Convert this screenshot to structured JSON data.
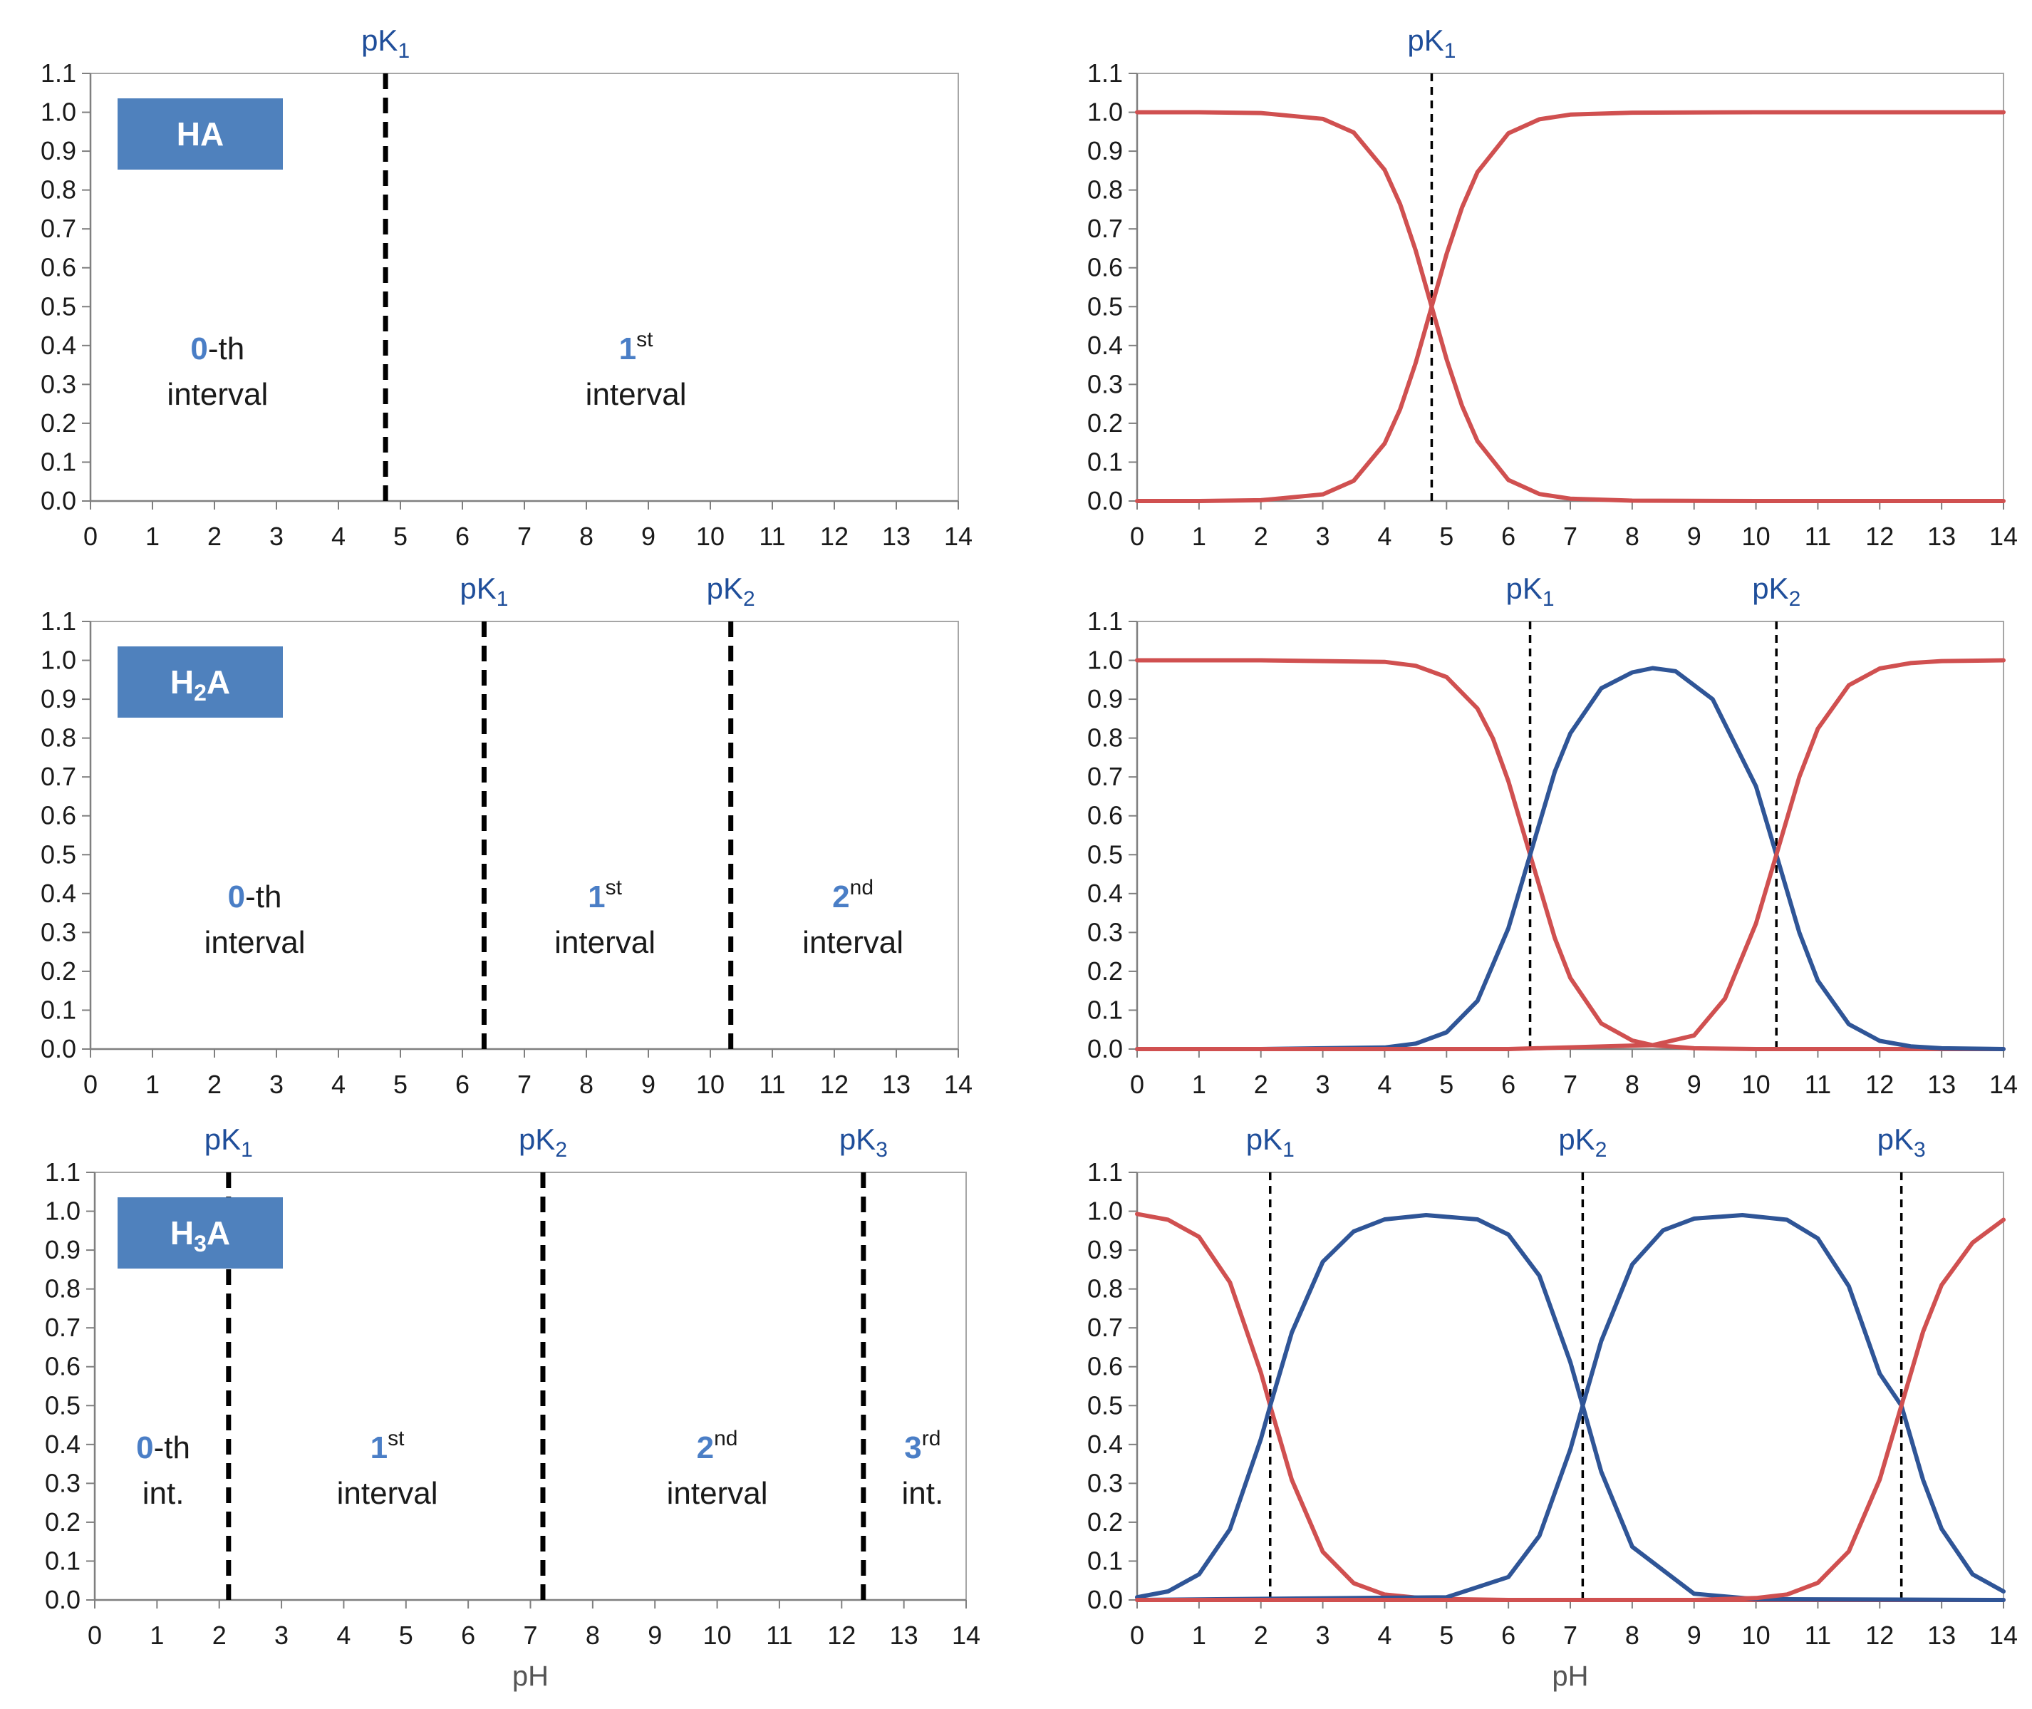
{
  "chart_data": [
    {
      "type": "line",
      "panel": "HA-intervals",
      "acid_label": {
        "main": "HA",
        "sub": "",
        "tail": ""
      },
      "xlabel": "",
      "xlim": [
        0,
        14
      ],
      "ylim": [
        0,
        1.1
      ],
      "x_ticks": [
        "0",
        "1",
        "2",
        "3",
        "4",
        "5",
        "6",
        "7",
        "8",
        "9",
        "10",
        "11",
        "12",
        "13",
        "14"
      ],
      "y_ticks": [
        "0.0",
        "0.1",
        "0.2",
        "0.3",
        "0.4",
        "0.5",
        "0.6",
        "0.7",
        "0.8",
        "0.9",
        "1.0",
        "1.1"
      ],
      "pK": [
        {
          "value": 4.76,
          "label": "pK",
          "sub": "1"
        }
      ],
      "intervals": [
        {
          "num": "0",
          "sup": "",
          "suffix": "-th",
          "word": "interval",
          "x": 2.05,
          "y": 0.365
        },
        {
          "num": "1",
          "sup": "st",
          "suffix": "",
          "word": "interval",
          "x": 8.8,
          "y": 0.365
        }
      ]
    },
    {
      "type": "line",
      "panel": "HA-fractions",
      "xlabel": "",
      "xlim": [
        0,
        14
      ],
      "ylim": [
        0,
        1.1
      ],
      "x_ticks": [
        "0",
        "1",
        "2",
        "3",
        "4",
        "5",
        "6",
        "7",
        "8",
        "9",
        "10",
        "11",
        "12",
        "13",
        "14"
      ],
      "y_ticks": [
        "0.0",
        "0.1",
        "0.2",
        "0.3",
        "0.4",
        "0.5",
        "0.6",
        "0.7",
        "0.8",
        "0.9",
        "1.0",
        "1.1"
      ],
      "pK": [
        {
          "value": 4.76,
          "label": "pK",
          "sub": "1"
        }
      ],
      "series_colors": [
        "#d05050",
        "#d05050"
      ],
      "series": [
        {
          "x": [
            0,
            1,
            2,
            3,
            3.5,
            4,
            4.25,
            4.5,
            4.76,
            5,
            5.25,
            5.5,
            6,
            6.5,
            7,
            8,
            10,
            12,
            14
          ],
          "values": [
            1.0,
            1.0,
            0.998,
            0.983,
            0.948,
            0.852,
            0.764,
            0.645,
            0.5,
            0.365,
            0.245,
            0.154,
            0.054,
            0.018,
            0.006,
            0.001,
            0.0,
            0.0,
            0.0
          ]
        },
        {
          "x": [
            0,
            1,
            2,
            3,
            3.5,
            4,
            4.25,
            4.5,
            4.76,
            5,
            5.25,
            5.5,
            6,
            6.5,
            7,
            8,
            10,
            12,
            14
          ],
          "values": [
            0.0,
            0.0,
            0.002,
            0.017,
            0.052,
            0.148,
            0.236,
            0.355,
            0.5,
            0.635,
            0.755,
            0.846,
            0.946,
            0.982,
            0.994,
            0.999,
            1.0,
            1.0,
            1.0
          ]
        }
      ]
    },
    {
      "type": "line",
      "panel": "H2A-intervals",
      "acid_label": {
        "main": "H",
        "sub": "2",
        "tail": "A"
      },
      "xlabel": "",
      "xlim": [
        0,
        14
      ],
      "ylim": [
        0,
        1.1
      ],
      "x_ticks": [
        "0",
        "1",
        "2",
        "3",
        "4",
        "5",
        "6",
        "7",
        "8",
        "9",
        "10",
        "11",
        "12",
        "13",
        "14"
      ],
      "y_ticks": [
        "0.0",
        "0.1",
        "0.2",
        "0.3",
        "0.4",
        "0.5",
        "0.6",
        "0.7",
        "0.8",
        "0.9",
        "1.0",
        "1.1"
      ],
      "pK": [
        {
          "value": 6.35,
          "label": "pK",
          "sub": "1"
        },
        {
          "value": 10.33,
          "label": "pK",
          "sub": "2"
        }
      ],
      "intervals": [
        {
          "num": "0",
          "sup": "",
          "suffix": "-th",
          "word": "interval",
          "x": 2.65,
          "y": 0.365
        },
        {
          "num": "1",
          "sup": "st",
          "suffix": "",
          "word": "interval",
          "x": 8.3,
          "y": 0.365
        },
        {
          "num": "2",
          "sup": "nd",
          "suffix": "",
          "word": "interval",
          "x": 12.3,
          "y": 0.365
        }
      ]
    },
    {
      "type": "line",
      "panel": "H2A-fractions",
      "xlabel": "",
      "xlim": [
        0,
        14
      ],
      "ylim": [
        0,
        1.1
      ],
      "x_ticks": [
        "0",
        "1",
        "2",
        "3",
        "4",
        "5",
        "6",
        "7",
        "8",
        "9",
        "10",
        "11",
        "12",
        "13",
        "14"
      ],
      "y_ticks": [
        "0.0",
        "0.1",
        "0.2",
        "0.3",
        "0.4",
        "0.5",
        "0.6",
        "0.7",
        "0.8",
        "0.9",
        "1.0",
        "1.1"
      ],
      "pK": [
        {
          "value": 6.35,
          "label": "pK",
          "sub": "1"
        },
        {
          "value": 10.33,
          "label": "pK",
          "sub": "2"
        }
      ],
      "series_colors": [
        "#d05050",
        "#2f5597",
        "#d05050"
      ],
      "series": [
        {
          "x": [
            0,
            2,
            4,
            4.5,
            5,
            5.5,
            5.75,
            6,
            6.35,
            6.75,
            7,
            7.5,
            8,
            8.33,
            9,
            10,
            11,
            12,
            14
          ],
          "values": [
            1.0,
            1.0,
            0.996,
            0.986,
            0.957,
            0.876,
            0.799,
            0.689,
            0.5,
            0.285,
            0.183,
            0.066,
            0.022,
            0.01,
            0.002,
            0.0,
            0.0,
            0.0,
            0.0
          ]
        },
        {
          "x": [
            0,
            2,
            4,
            4.5,
            5,
            5.5,
            6,
            6.35,
            6.75,
            7,
            7.5,
            8,
            8.33,
            8.7,
            9.3,
            10,
            10.33,
            10.7,
            11,
            11.5,
            12,
            12.5,
            13,
            14
          ],
          "values": [
            0.0,
            0.0,
            0.004,
            0.014,
            0.043,
            0.124,
            0.311,
            0.499,
            0.714,
            0.812,
            0.928,
            0.969,
            0.98,
            0.972,
            0.9,
            0.676,
            0.5,
            0.3,
            0.176,
            0.064,
            0.021,
            0.007,
            0.002,
            0.0
          ]
        },
        {
          "x": [
            0,
            2,
            4,
            6,
            8,
            8.33,
            9,
            9.5,
            10,
            10.33,
            10.7,
            11,
            11.5,
            12,
            12.5,
            13,
            14
          ],
          "values": [
            0.0,
            0.0,
            0.0,
            0.0,
            0.009,
            0.01,
            0.035,
            0.13,
            0.323,
            0.5,
            0.7,
            0.824,
            0.936,
            0.979,
            0.993,
            0.998,
            1.0
          ]
        }
      ]
    },
    {
      "type": "line",
      "panel": "H3A-intervals",
      "acid_label": {
        "main": "H",
        "sub": "3",
        "tail": "A"
      },
      "xlabel": "pH",
      "xlim": [
        0,
        14
      ],
      "ylim": [
        0,
        1.1
      ],
      "x_ticks": [
        "0",
        "1",
        "2",
        "3",
        "4",
        "5",
        "6",
        "7",
        "8",
        "9",
        "10",
        "11",
        "12",
        "13",
        "14"
      ],
      "y_ticks": [
        "0.0",
        "0.1",
        "0.2",
        "0.3",
        "0.4",
        "0.5",
        "0.6",
        "0.7",
        "0.8",
        "0.9",
        "1.0",
        "1.1"
      ],
      "pK": [
        {
          "value": 2.15,
          "label": "pK",
          "sub": "1"
        },
        {
          "value": 7.2,
          "label": "pK",
          "sub": "2"
        },
        {
          "value": 12.35,
          "label": "pK",
          "sub": "3"
        }
      ],
      "intervals": [
        {
          "num": "0",
          "sup": "",
          "suffix": "-th",
          "word": "int.",
          "x": 1.1,
          "y": 0.365
        },
        {
          "num": "1",
          "sup": "st",
          "suffix": "",
          "word": "interval",
          "x": 4.7,
          "y": 0.365
        },
        {
          "num": "2",
          "sup": "nd",
          "suffix": "",
          "word": "interval",
          "x": 10.0,
          "y": 0.365
        },
        {
          "num": "3",
          "sup": "rd",
          "suffix": "",
          "word": "int.",
          "x": 13.3,
          "y": 0.365
        }
      ]
    },
    {
      "type": "line",
      "panel": "H3A-fractions",
      "xlabel": "pH",
      "xlim": [
        0,
        14
      ],
      "ylim": [
        0,
        1.1
      ],
      "x_ticks": [
        "0",
        "1",
        "2",
        "3",
        "4",
        "5",
        "6",
        "7",
        "8",
        "9",
        "10",
        "11",
        "12",
        "13",
        "14"
      ],
      "y_ticks": [
        "0.0",
        "0.1",
        "0.2",
        "0.3",
        "0.4",
        "0.5",
        "0.6",
        "0.7",
        "0.8",
        "0.9",
        "1.0",
        "1.1"
      ],
      "pK": [
        {
          "value": 2.15,
          "label": "pK",
          "sub": "1"
        },
        {
          "value": 7.2,
          "label": "pK",
          "sub": "2"
        },
        {
          "value": 12.35,
          "label": "pK",
          "sub": "3"
        }
      ],
      "series_colors": [
        "#d05050",
        "#2f5597",
        "#2f5597",
        "#d05050"
      ],
      "series": [
        {
          "x": [
            0,
            0.5,
            1,
            1.5,
            2,
            2.15,
            2.5,
            3,
            3.5,
            4,
            4.7,
            6,
            8,
            10,
            14
          ],
          "values": [
            0.993,
            0.978,
            0.934,
            0.817,
            0.585,
            0.5,
            0.309,
            0.124,
            0.043,
            0.014,
            0.003,
            0.0,
            0.0,
            0.0,
            0.0
          ]
        },
        {
          "x": [
            0,
            0.5,
            1,
            1.5,
            2,
            2.15,
            2.5,
            3,
            3.5,
            4,
            4.67,
            5.5,
            6,
            6.5,
            7,
            7.2,
            7.5,
            8,
            9,
            10,
            14
          ],
          "values": [
            0.007,
            0.022,
            0.066,
            0.182,
            0.414,
            0.499,
            0.688,
            0.87,
            0.948,
            0.979,
            0.99,
            0.979,
            0.94,
            0.834,
            0.612,
            0.5,
            0.33,
            0.137,
            0.016,
            0.002,
            0.0
          ]
        },
        {
          "x": [
            0,
            5,
            6,
            6.5,
            7,
            7.2,
            7.5,
            8,
            8.5,
            9,
            9.78,
            10.5,
            11,
            11.5,
            12,
            12.35,
            12.7,
            13,
            13.5,
            14
          ],
          "values": [
            0.0,
            0.007,
            0.059,
            0.165,
            0.387,
            0.5,
            0.666,
            0.863,
            0.951,
            0.981,
            0.99,
            0.978,
            0.93,
            0.807,
            0.582,
            0.5,
            0.309,
            0.183,
            0.066,
            0.022
          ]
        },
        {
          "x": [
            0,
            9,
            10,
            10.5,
            11,
            11.5,
            12,
            12.35,
            12.7,
            13,
            13.5,
            14
          ],
          "values": [
            0.0,
            0.0,
            0.005,
            0.014,
            0.044,
            0.125,
            0.31,
            0.5,
            0.69,
            0.81,
            0.919,
            0.978
          ]
        }
      ]
    }
  ]
}
